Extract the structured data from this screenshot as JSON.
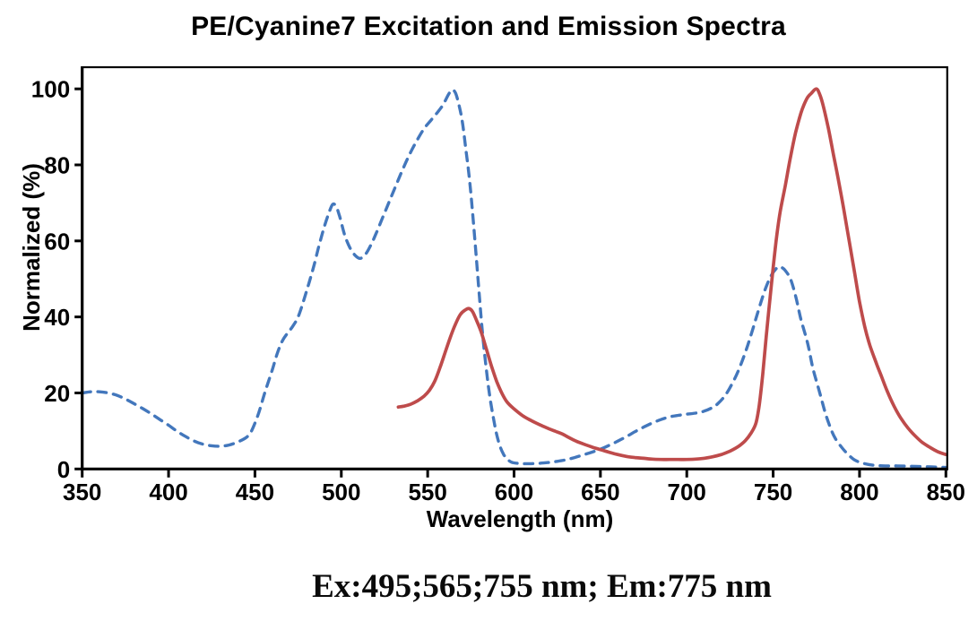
{
  "page": {
    "background": "#ffffff"
  },
  "chart_data": {
    "type": "line",
    "title": "PE/Cyanine7 Excitation and Emission Spectra",
    "xlabel": "Wavelength (nm)",
    "ylabel": "Normalized (%)",
    "xlim": [
      350,
      850
    ],
    "ylim": [
      0,
      105.7
    ],
    "x_ticks": [
      350,
      400,
      450,
      500,
      550,
      600,
      650,
      700,
      750,
      800,
      850
    ],
    "y_ticks": [
      0,
      20,
      40,
      60,
      80,
      100
    ],
    "grid": false,
    "legend_position": "none",
    "axis_color": "#000000",
    "series": [
      {
        "name": "excitation",
        "style": "dashed",
        "color": "#4377BC",
        "width": 3.4,
        "points": [
          [
            350,
            20
          ],
          [
            355,
            20.3
          ],
          [
            360,
            20.3
          ],
          [
            365,
            20
          ],
          [
            370,
            19.4
          ],
          [
            375,
            18.4
          ],
          [
            380,
            17.2
          ],
          [
            385,
            15.9
          ],
          [
            390,
            14.5
          ],
          [
            395,
            13
          ],
          [
            400,
            11.5
          ],
          [
            405,
            9.9
          ],
          [
            410,
            8.5
          ],
          [
            415,
            7.3
          ],
          [
            420,
            6.5
          ],
          [
            425,
            6.1
          ],
          [
            430,
            6.0
          ],
          [
            435,
            6.3
          ],
          [
            440,
            7.1
          ],
          [
            445,
            8.3
          ],
          [
            448,
            10
          ],
          [
            452,
            14.5
          ],
          [
            456,
            20.5
          ],
          [
            460,
            26
          ],
          [
            463,
            30.5
          ],
          [
            466,
            33.8
          ],
          [
            469,
            35.8
          ],
          [
            472,
            37.6
          ],
          [
            475,
            40
          ],
          [
            478,
            44
          ],
          [
            481,
            48.5
          ],
          [
            484,
            53.2
          ],
          [
            487,
            58.6
          ],
          [
            490,
            63.5
          ],
          [
            493,
            67.6
          ],
          [
            495,
            69.6
          ],
          [
            497,
            69.1
          ],
          [
            499,
            66.5
          ],
          [
            502,
            61.5
          ],
          [
            505,
            58.2
          ],
          [
            508,
            56.2
          ],
          [
            511,
            55.4
          ],
          [
            514,
            56.5
          ],
          [
            517,
            58.8
          ],
          [
            520,
            61.8
          ],
          [
            524,
            66.2
          ],
          [
            528,
            70.6
          ],
          [
            532,
            75
          ],
          [
            536,
            79.3
          ],
          [
            540,
            83.2
          ],
          [
            544,
            86.6
          ],
          [
            548,
            89.6
          ],
          [
            552,
            91.8
          ],
          [
            556,
            94
          ],
          [
            559,
            95.9
          ],
          [
            562,
            98.5
          ],
          [
            564,
            99.7
          ],
          [
            566,
            99
          ],
          [
            568,
            96
          ],
          [
            570,
            91.5
          ],
          [
            572,
            84.5
          ],
          [
            574,
            77
          ],
          [
            576,
            67.5
          ],
          [
            578,
            56.5
          ],
          [
            580,
            45
          ],
          [
            582,
            34.5
          ],
          [
            584,
            26
          ],
          [
            586,
            19
          ],
          [
            588,
            13.5
          ],
          [
            590,
            9
          ],
          [
            592,
            5.8
          ],
          [
            594,
            3.8
          ],
          [
            596,
            2.6
          ],
          [
            598,
            1.9
          ],
          [
            600,
            1.6
          ],
          [
            605,
            1.4
          ],
          [
            610,
            1.4
          ],
          [
            615,
            1.5
          ],
          [
            620,
            1.7
          ],
          [
            625,
            2.0
          ],
          [
            630,
            2.4
          ],
          [
            635,
            3.0
          ],
          [
            640,
            3.7
          ],
          [
            645,
            4.4
          ],
          [
            650,
            5.2
          ],
          [
            655,
            6.2
          ],
          [
            660,
            7.3
          ],
          [
            665,
            8.5
          ],
          [
            670,
            9.8
          ],
          [
            675,
            11
          ],
          [
            680,
            12.1
          ],
          [
            685,
            13
          ],
          [
            690,
            13.7
          ],
          [
            695,
            14.1
          ],
          [
            700,
            14.4
          ],
          [
            705,
            14.7
          ],
          [
            710,
            15.2
          ],
          [
            715,
            16.2
          ],
          [
            718,
            17.2
          ],
          [
            722,
            19.2
          ],
          [
            726,
            22.2
          ],
          [
            730,
            26
          ],
          [
            734,
            30.8
          ],
          [
            737,
            35
          ],
          [
            740,
            39.5
          ],
          [
            743,
            44
          ],
          [
            746,
            48
          ],
          [
            749,
            51
          ],
          [
            751,
            52.3
          ],
          [
            753,
            53.2
          ],
          [
            755,
            53
          ],
          [
            757,
            52.2
          ],
          [
            760,
            50
          ],
          [
            763,
            45.5
          ],
          [
            766,
            39.5
          ],
          [
            770,
            33
          ],
          [
            773,
            26.5
          ],
          [
            777,
            20
          ],
          [
            780,
            15
          ],
          [
            783,
            11
          ],
          [
            786,
            8
          ],
          [
            790,
            5.5
          ],
          [
            793,
            4
          ],
          [
            797,
            2.4
          ],
          [
            802,
            1.5
          ],
          [
            808,
            1.0
          ],
          [
            815,
            0.8
          ],
          [
            822,
            0.8
          ],
          [
            830,
            0.7
          ],
          [
            838,
            0.6
          ],
          [
            844,
            0.5
          ],
          [
            850,
            0.4
          ]
        ]
      },
      {
        "name": "emission",
        "style": "solid",
        "color": "#BE4B4B",
        "width": 3.7,
        "points": [
          [
            533,
            16.3
          ],
          [
            536,
            16.5
          ],
          [
            540,
            17
          ],
          [
            544,
            17.9
          ],
          [
            548,
            19.2
          ],
          [
            551,
            20.7
          ],
          [
            554,
            23
          ],
          [
            557,
            26.5
          ],
          [
            560,
            30.5
          ],
          [
            563,
            34.5
          ],
          [
            566,
            38
          ],
          [
            569,
            40.7
          ],
          [
            572,
            41.9
          ],
          [
            574,
            42.2
          ],
          [
            576,
            41.4
          ],
          [
            578,
            39.4
          ],
          [
            581,
            36
          ],
          [
            584,
            31.5
          ],
          [
            587,
            27
          ],
          [
            590,
            23
          ],
          [
            593,
            19.9
          ],
          [
            596,
            17.6
          ],
          [
            600,
            15.8
          ],
          [
            605,
            14
          ],
          [
            610,
            12.7
          ],
          [
            615,
            11.6
          ],
          [
            620,
            10.6
          ],
          [
            624,
            9.9
          ],
          [
            628,
            9.2
          ],
          [
            632,
            8.2
          ],
          [
            636,
            7.3
          ],
          [
            640,
            6.6
          ],
          [
            645,
            5.8
          ],
          [
            650,
            5.1
          ],
          [
            655,
            4.4
          ],
          [
            660,
            3.8
          ],
          [
            665,
            3.3
          ],
          [
            670,
            3.0
          ],
          [
            675,
            2.8
          ],
          [
            680,
            2.6
          ],
          [
            685,
            2.5
          ],
          [
            690,
            2.5
          ],
          [
            695,
            2.5
          ],
          [
            700,
            2.5
          ],
          [
            705,
            2.6
          ],
          [
            710,
            2.8
          ],
          [
            715,
            3.2
          ],
          [
            720,
            3.8
          ],
          [
            725,
            4.7
          ],
          [
            728,
            5.4
          ],
          [
            731,
            6.3
          ],
          [
            734,
            7.5
          ],
          [
            737,
            9.3
          ],
          [
            740,
            12
          ],
          [
            742,
            17
          ],
          [
            744,
            25
          ],
          [
            746,
            35
          ],
          [
            748,
            44
          ],
          [
            750,
            53
          ],
          [
            752,
            61
          ],
          [
            754,
            67.5
          ],
          [
            757,
            74.5
          ],
          [
            760,
            82
          ],
          [
            763,
            88.5
          ],
          [
            766,
            93.5
          ],
          [
            768,
            96
          ],
          [
            770,
            97.8
          ],
          [
            772,
            98.8
          ],
          [
            775,
            100
          ],
          [
            777,
            98.5
          ],
          [
            779,
            95.5
          ],
          [
            782,
            89.5
          ],
          [
            785,
            82.5
          ],
          [
            788,
            75.5
          ],
          [
            791,
            68
          ],
          [
            794,
            60
          ],
          [
            797,
            52
          ],
          [
            800,
            44
          ],
          [
            803,
            37.5
          ],
          [
            806,
            32.5
          ],
          [
            810,
            27.5
          ],
          [
            813,
            24
          ],
          [
            816,
            20.5
          ],
          [
            820,
            16.5
          ],
          [
            824,
            13.3
          ],
          [
            828,
            10.8
          ],
          [
            832,
            8.8
          ],
          [
            836,
            7.1
          ],
          [
            840,
            5.9
          ],
          [
            845,
            4.6
          ],
          [
            850,
            3.8
          ]
        ]
      }
    ]
  },
  "annotation": {
    "text": "Ex:495;565;755 nm; Em:775 nm"
  }
}
